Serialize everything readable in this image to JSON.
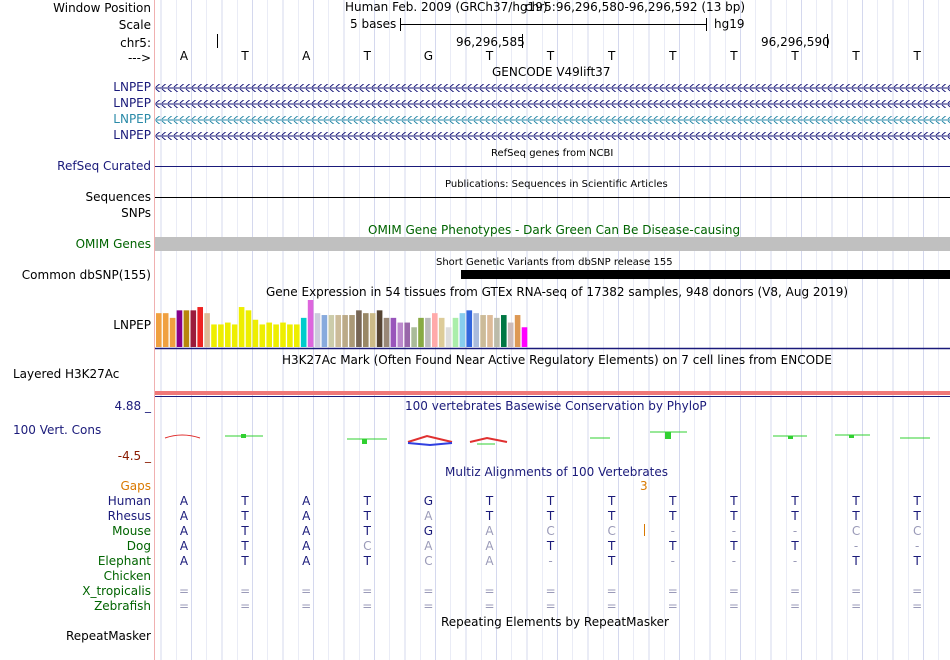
{
  "header": {
    "window_position_label": "Window Position",
    "scale_label": "Scale",
    "chr_label": "chr5:",
    "arrow_label": "--->",
    "assembly": "Human Feb. 2009 (GRCh37/hg19)",
    "position": "chr5:96,296,580-96,296,592 (13 bp)",
    "scale_text": "5 bases",
    "db": "hg19",
    "tick_left": "96,296,585",
    "tick_right": "96,296,590"
  },
  "sequence": [
    "A",
    "T",
    "A",
    "T",
    "G",
    "T",
    "T",
    "T",
    "T",
    "T",
    "T",
    "T",
    "T"
  ],
  "tracks": {
    "gencode": {
      "title": "GENCODE V49lift37",
      "genes": [
        {
          "label": "LNPEP",
          "color": "#1a1a7a"
        },
        {
          "label": "LNPEP",
          "color": "#1a1a7a"
        },
        {
          "label": "LNPEP",
          "color": "#2a8aa8"
        },
        {
          "label": "LNPEP",
          "color": "#1a1a7a"
        }
      ]
    },
    "refseq": {
      "title": "RefSeq genes from NCBI",
      "label": "RefSeq Curated"
    },
    "publications": {
      "title": "Publications: Sequences in Scientific Articles",
      "label": "Sequences"
    },
    "snps": {
      "label": "SNPs"
    },
    "omim": {
      "title": "OMIM Gene Phenotypes - Dark Green Can Be Disease-causing",
      "label": "OMIM Genes"
    },
    "dbsnp": {
      "title": "Short Genetic Variants from dbSNP release 155",
      "label": "Common dbSNP(155)"
    },
    "gtex": {
      "title": "Gene Expression in 54 tissues from GTEx RNA-seq of 17382 samples, 948 donors (V8, Aug 2019)",
      "label": "LNPEP",
      "bars": [
        {
          "v": 0.72,
          "c": "#f0a040"
        },
        {
          "v": 0.72,
          "c": "#f0a040"
        },
        {
          "v": 0.62,
          "c": "#f0a040"
        },
        {
          "v": 0.78,
          "c": "#880088"
        },
        {
          "v": 0.78,
          "c": "#b8860b"
        },
        {
          "v": 0.78,
          "c": "#9b1b3b"
        },
        {
          "v": 0.85,
          "c": "#ee2222"
        },
        {
          "v": 0.72,
          "c": "#ddbb99"
        },
        {
          "v": 0.48,
          "c": "#eeee00"
        },
        {
          "v": 0.48,
          "c": "#eeee00"
        },
        {
          "v": 0.52,
          "c": "#eeee00"
        },
        {
          "v": 0.48,
          "c": "#eeee00"
        },
        {
          "v": 0.85,
          "c": "#eeee00"
        },
        {
          "v": 0.78,
          "c": "#eeee00"
        },
        {
          "v": 0.58,
          "c": "#eeee00"
        },
        {
          "v": 0.48,
          "c": "#eeee00"
        },
        {
          "v": 0.52,
          "c": "#eeee00"
        },
        {
          "v": 0.48,
          "c": "#eeee00"
        },
        {
          "v": 0.52,
          "c": "#eeee00"
        },
        {
          "v": 0.48,
          "c": "#eeee00"
        },
        {
          "v": 0.48,
          "c": "#eeee00"
        },
        {
          "v": 0.62,
          "c": "#00cccc"
        },
        {
          "v": 1.0,
          "c": "#dd66dd"
        },
        {
          "v": 0.72,
          "c": "#ccccdd"
        },
        {
          "v": 0.68,
          "c": "#88aadd"
        },
        {
          "v": 0.68,
          "c": "#ccccaa"
        },
        {
          "v": 0.68,
          "c": "#ccbb99"
        },
        {
          "v": 0.68,
          "c": "#bbaa88"
        },
        {
          "v": 0.68,
          "c": "#aa9977"
        },
        {
          "v": 0.78,
          "c": "#776655"
        },
        {
          "v": 0.72,
          "c": "#998866"
        },
        {
          "v": 0.72,
          "c": "#ccbb88"
        },
        {
          "v": 0.78,
          "c": "#554433"
        },
        {
          "v": 0.62,
          "c": "#998877"
        },
        {
          "v": 0.62,
          "c": "#9955bb"
        },
        {
          "v": 0.52,
          "c": "#bb88cc"
        },
        {
          "v": 0.52,
          "c": "#9966aa"
        },
        {
          "v": 0.42,
          "c": "#aabb99"
        },
        {
          "v": 0.62,
          "c": "#88aa44"
        },
        {
          "v": 0.62,
          "c": "#bbbbbb"
        },
        {
          "v": 0.72,
          "c": "#ffaaaa"
        },
        {
          "v": 0.62,
          "c": "#ddcc99"
        },
        {
          "v": 0.42,
          "c": "#dddddd"
        },
        {
          "v": 0.62,
          "c": "#aaeeaa"
        },
        {
          "v": 0.72,
          "c": "#88ccee"
        },
        {
          "v": 0.78,
          "c": "#3366dd"
        },
        {
          "v": 0.72,
          "c": "#aabbdd"
        },
        {
          "v": 0.68,
          "c": "#ccbb99"
        },
        {
          "v": 0.68,
          "c": "#ddbb99"
        },
        {
          "v": 0.62,
          "c": "#bbbbaa"
        },
        {
          "v": 0.68,
          "c": "#007744"
        },
        {
          "v": 0.52,
          "c": "#ccbbbb"
        },
        {
          "v": 0.68,
          "c": "#dd9955"
        },
        {
          "v": 0.42,
          "c": "#ff00ff"
        }
      ]
    },
    "h3k27ac": {
      "title": "H3K27Ac Mark (Often Found Near Active Regulatory Elements) on 7 cell lines from ENCODE",
      "label": "Layered H3K27Ac"
    },
    "phylop": {
      "title": "100 vertebrates Basewise Conservation by PhyloP",
      "label": "100 Vert. Cons",
      "max": "4.88 _",
      "min": "-4.5 _"
    },
    "multiz": {
      "title": "Multiz Alignments of 100 Vertebrates",
      "gaps_label": "Gaps",
      "gap_count": "3",
      "species": [
        {
          "name": "Human",
          "color": "#1a1a7a",
          "bases": [
            "A",
            "T",
            "A",
            "T",
            "G",
            "T",
            "T",
            "T",
            "T",
            "T",
            "T",
            "T",
            "T"
          ],
          "dim": [
            0,
            0,
            0,
            0,
            0,
            0,
            0,
            0,
            0,
            0,
            0,
            0,
            0
          ]
        },
        {
          "name": "Rhesus",
          "color": "#1a1a7a",
          "bases": [
            "A",
            "T",
            "A",
            "T",
            "A",
            "T",
            "T",
            "T",
            "T",
            "T",
            "T",
            "T",
            "T"
          ],
          "dim": [
            0,
            0,
            0,
            0,
            1,
            0,
            0,
            0,
            0,
            0,
            0,
            0,
            0
          ]
        },
        {
          "name": "Mouse",
          "color": "#006400",
          "bases": [
            "A",
            "T",
            "A",
            "T",
            "G",
            "A",
            "C",
            "C",
            "-",
            "-",
            "-",
            "C",
            "C"
          ],
          "dim": [
            0,
            0,
            0,
            0,
            0,
            1,
            1,
            1,
            1,
            1,
            1,
            1,
            1
          ]
        },
        {
          "name": "Dog",
          "color": "#006400",
          "bases": [
            "A",
            "T",
            "A",
            "C",
            "A",
            "A",
            "T",
            "T",
            "T",
            "T",
            "T",
            "-",
            "-"
          ],
          "dim": [
            0,
            0,
            0,
            1,
            1,
            1,
            0,
            0,
            0,
            0,
            0,
            1,
            1
          ]
        },
        {
          "name": "Elephant",
          "color": "#006400",
          "bases": [
            "A",
            "T",
            "A",
            "T",
            "C",
            "A",
            "-",
            "T",
            "-",
            "-",
            "-",
            "T",
            "T"
          ],
          "dim": [
            0,
            0,
            0,
            0,
            1,
            1,
            1,
            0,
            1,
            1,
            1,
            0,
            0
          ]
        },
        {
          "name": "Chicken",
          "color": "#006400",
          "bases": [
            "",
            "",
            "",
            "",
            "",
            "",
            "",
            "",
            "",
            "",
            "",
            "",
            ""
          ],
          "dim": [
            0,
            0,
            0,
            0,
            0,
            0,
            0,
            0,
            0,
            0,
            0,
            0,
            0
          ]
        },
        {
          "name": "X_tropicalis",
          "color": "#006400",
          "bases": [
            "=",
            "=",
            "=",
            "=",
            "=",
            "=",
            "=",
            "=",
            "=",
            "=",
            "=",
            "=",
            "="
          ],
          "dim": [
            1,
            1,
            1,
            1,
            1,
            1,
            1,
            1,
            1,
            1,
            1,
            1,
            1
          ]
        },
        {
          "name": "Zebrafish",
          "color": "#006400",
          "bases": [
            "=",
            "=",
            "=",
            "=",
            "=",
            "=",
            "=",
            "=",
            "=",
            "=",
            "=",
            "=",
            "="
          ],
          "dim": [
            1,
            1,
            1,
            1,
            1,
            1,
            1,
            1,
            1,
            1,
            1,
            1,
            1
          ]
        }
      ]
    },
    "repeatmasker": {
      "title": "Repeating Elements by RepeatMasker",
      "label": "RepeatMasker"
    }
  }
}
